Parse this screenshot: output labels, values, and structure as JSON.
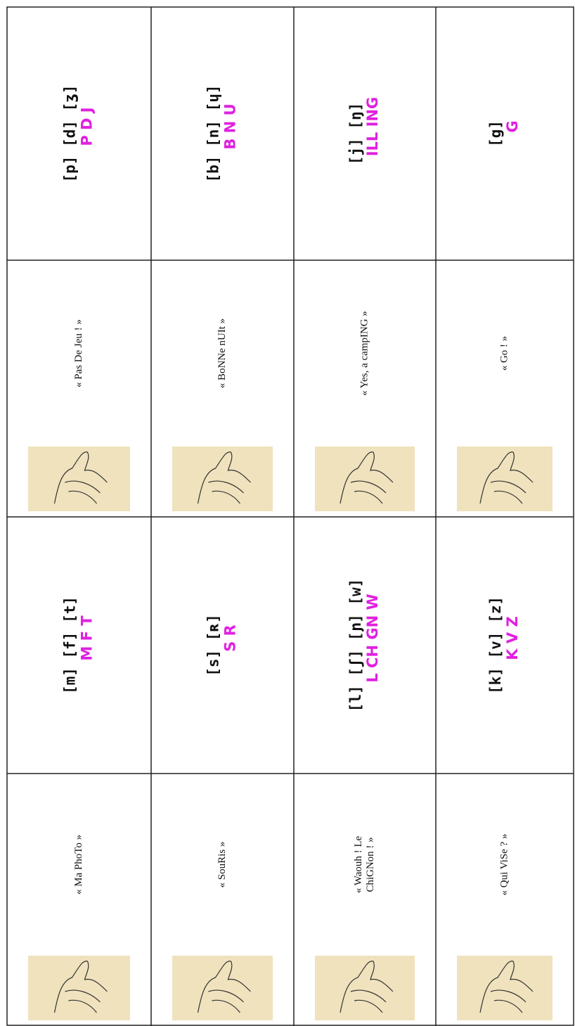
{
  "rows": [
    {
      "left": {
        "phrase": [
          "« Ma PhoTo »"
        ],
        "phonemes": "[m]  [f]  [t]",
        "letters": "M F T"
      },
      "right": {
        "phrase": [
          "« Pas De Jeu ! »"
        ],
        "phonemes": "[p]  [d]  [ʒ]",
        "letters": "P D J"
      }
    },
    {
      "left": {
        "phrase": [
          "« SouRis »"
        ],
        "phonemes": "[s]  [ʀ]",
        "letters": "S R"
      },
      "right": {
        "phrase": [
          "« BoNNe nUIt »"
        ],
        "phonemes": "[b]  [n]  [ɥ]",
        "letters": "B N U"
      }
    },
    {
      "left": {
        "phrase": [
          "« Waouh ! Le",
          "ChiGNon ! »"
        ],
        "phonemes": "[l]  [ʃ]  [ɲ]  [w]",
        "letters": "L CH GN W"
      },
      "right": {
        "phrase": [
          "« Yes, a campING »"
        ],
        "phonemes": "[j]  [ŋ]",
        "letters": "ILL ING"
      }
    },
    {
      "left": {
        "phrase": [
          "« Qui ViSe ? »"
        ],
        "phonemes": "[k]  [v]  [z]",
        "letters": "K V Z"
      },
      "right": {
        "phrase": [
          "« Go ! »"
        ],
        "phonemes": "[g]",
        "letters": "G"
      }
    }
  ]
}
